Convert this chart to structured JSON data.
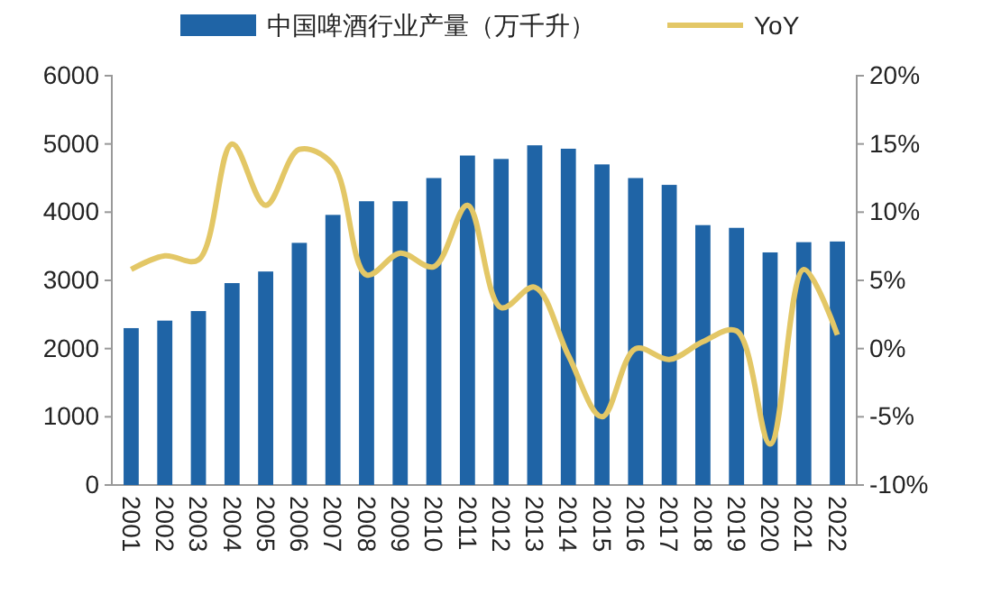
{
  "chart_data": {
    "type": "bar",
    "categories": [
      "2001",
      "2002",
      "2003",
      "2004",
      "2005",
      "2006",
      "2007",
      "2008",
      "2009",
      "2010",
      "2011",
      "2012",
      "2013",
      "2014",
      "2015",
      "2016",
      "2017",
      "2018",
      "2019",
      "2020",
      "2021",
      "2022"
    ],
    "series": [
      {
        "name": "中国啤酒行业产量（万千升）",
        "color": "#1f64a6",
        "values": [
          2300,
          2410,
          2550,
          2960,
          3130,
          3550,
          3960,
          4160,
          4160,
          4500,
          4830,
          4780,
          4980,
          4930,
          4700,
          4500,
          4400,
          3810,
          3770,
          3410,
          3560,
          3570
        ]
      },
      {
        "name": "YoY",
        "type": "line",
        "axis": "y2",
        "color": "#e3c766",
        "values": [
          5.8,
          6.8,
          6.5,
          15,
          10.5,
          14.6,
          13.5,
          5.4,
          7,
          6,
          10.5,
          3,
          4.5,
          -0.5,
          -5,
          0,
          -0.8,
          0.5,
          1.3,
          -7,
          5.8,
          1
        ]
      }
    ],
    "ylim": [
      0,
      6000
    ],
    "yticks": [
      0,
      1000,
      2000,
      3000,
      4000,
      5000,
      6000
    ],
    "y2lim": [
      -10,
      20
    ],
    "y2ticks": [
      {
        "value": -10,
        "label": "-10%"
      },
      {
        "value": -5,
        "label": "-5%"
      },
      {
        "value": 0,
        "label": "0%"
      },
      {
        "value": 5,
        "label": "5%"
      },
      {
        "value": 10,
        "label": "10%"
      },
      {
        "value": 15,
        "label": "15%"
      },
      {
        "value": 20,
        "label": "20%"
      }
    ],
    "legend": "top",
    "grid": false,
    "marker": "none",
    "line_style": "solid"
  }
}
